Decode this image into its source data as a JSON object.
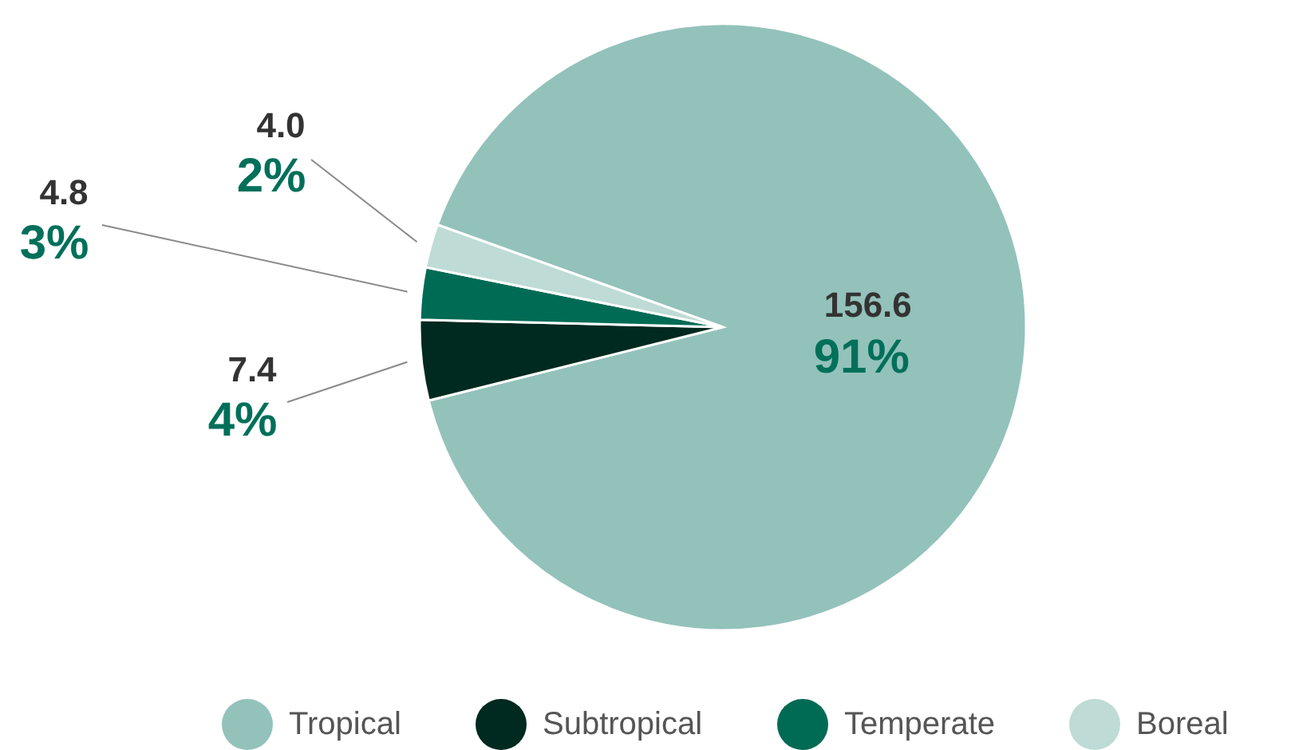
{
  "chart_data": {
    "type": "pie",
    "categories": [
      "Tropical",
      "Subtropical",
      "Temperate",
      "Boreal"
    ],
    "values": [
      156.6,
      7.4,
      4.8,
      4.0
    ],
    "colors": [
      "#93c2bb",
      "#00291f",
      "#006b54",
      "#bedbd5"
    ],
    "value_labels": [
      "156.6",
      "7.4",
      "4.8",
      "4.0"
    ],
    "annotations": [
      {
        "text": "91%",
        "x": "Tropical"
      },
      {
        "text": "4%",
        "x": "Subtropical"
      },
      {
        "text": "3%",
        "x": "Temperate"
      },
      {
        "text": "2%",
        "x": "Boreal"
      }
    ],
    "legend": "bottom"
  }
}
